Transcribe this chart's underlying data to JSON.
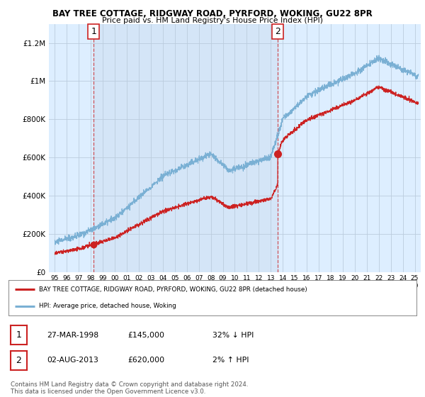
{
  "title": "BAY TREE COTTAGE, RIDGWAY ROAD, PYRFORD, WOKING, GU22 8PR",
  "subtitle": "Price paid vs. HM Land Registry's House Price Index (HPI)",
  "ylabel_ticks": [
    "£0",
    "£200K",
    "£400K",
    "£600K",
    "£800K",
    "£1M",
    "£1.2M"
  ],
  "ytick_values": [
    0,
    200000,
    400000,
    600000,
    800000,
    1000000,
    1200000
  ],
  "ylim": [
    0,
    1300000
  ],
  "xlim_start": 1994.5,
  "xlim_end": 2025.5,
  "hpi_color": "#7ab0d4",
  "price_color": "#cc2222",
  "background_color": "#ddeeff",
  "grid_color": "#bbccdd",
  "sale1_x": 1998.23,
  "sale1_y": 145000,
  "sale2_x": 2013.58,
  "sale2_y": 620000,
  "legend_label1": "BAY TREE COTTAGE, RIDGWAY ROAD, PYRFORD, WOKING, GU22 8PR (detached house)",
  "legend_label2": "HPI: Average price, detached house, Woking",
  "table_rows": [
    {
      "num": "1",
      "date": "27-MAR-1998",
      "price": "£145,000",
      "hpi": "32% ↓ HPI"
    },
    {
      "num": "2",
      "date": "02-AUG-2013",
      "price": "£620,000",
      "hpi": "2% ↑ HPI"
    }
  ],
  "footnote": "Contains HM Land Registry data © Crown copyright and database right 2024.\nThis data is licensed under the Open Government Licence v3.0.",
  "xtick_years": [
    1995,
    1996,
    1997,
    1998,
    1999,
    2000,
    2001,
    2002,
    2003,
    2004,
    2005,
    2006,
    2007,
    2008,
    2009,
    2010,
    2011,
    2012,
    2013,
    2014,
    2015,
    2016,
    2017,
    2018,
    2019,
    2020,
    2021,
    2022,
    2023,
    2024,
    2025
  ]
}
